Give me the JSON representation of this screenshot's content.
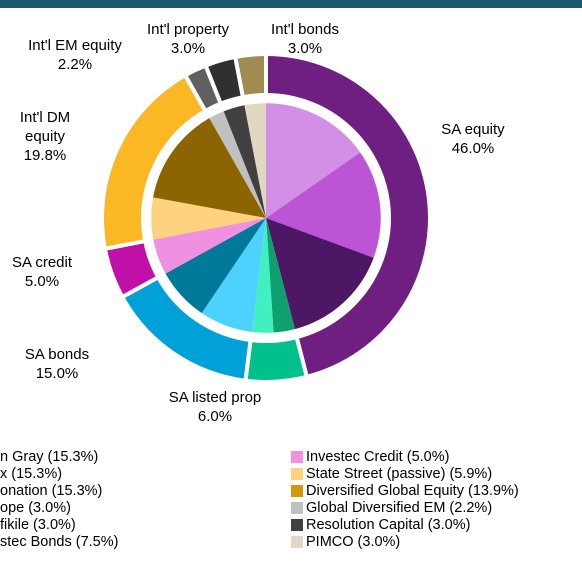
{
  "chart_data": {
    "type": "nested-donut",
    "outer": {
      "names": [
        "SA equity",
        "SA listed prop",
        "SA bonds",
        "SA credit",
        "Int'l DM equity",
        "Int'l EM equity",
        "Int'l property",
        "Int'l bonds"
      ],
      "values": [
        46.0,
        6.0,
        15.0,
        5.0,
        19.8,
        2.2,
        3.0,
        3.0
      ],
      "value_labels": [
        "46.0%",
        "6.0%",
        "15.0%",
        "5.0%",
        "19.8%",
        "2.2%",
        "3.0%",
        "3.0%"
      ],
      "colors": [
        "#6f1f82",
        "#00c08b",
        "#00a0d8",
        "#c010a8",
        "#fbb824",
        "#606060",
        "#303030",
        "#a08c50"
      ]
    },
    "inner": {
      "values": [
        15.3,
        15.3,
        15.3,
        3.0,
        3.0,
        7.5,
        7.5,
        5.0,
        5.9,
        13.9,
        2.2,
        3.0,
        3.0
      ],
      "colors": [
        "#d38ee6",
        "#bb55d6",
        "#4e1765",
        "#10a070",
        "#40f0c0",
        "#4dd2ff",
        "#00789a",
        "#f090e0",
        "#ffd27f",
        "#8c6400",
        "#c0c0c0",
        "#404040",
        "#e0d8c0"
      ],
      "legend_colors": [
        "#d38ee6",
        "#bb55d6",
        "#4e1765",
        "#10a070",
        "#40f0c0",
        "#4dd2ff",
        null,
        "#f090e0",
        "#ffd27f",
        "#d4960c",
        "#c0c0c0",
        "#404040",
        "#e0d8c0"
      ],
      "labels": [
        "n Gray (15.3%)",
        "x (15.3%)",
        "onation (15.3%)",
        "ope (3.0%)",
        "fikile (3.0%)",
        "stec Bonds (7.5%)",
        null,
        "Investec Credit (5.0%)",
        "State Street (passive) (5.9%)",
        "Diversified Global Equity (13.9%)",
        "Global Diversified EM (2.2%)",
        "Resolution Capital (3.0%)",
        "PIMCO (3.0%)"
      ]
    }
  }
}
